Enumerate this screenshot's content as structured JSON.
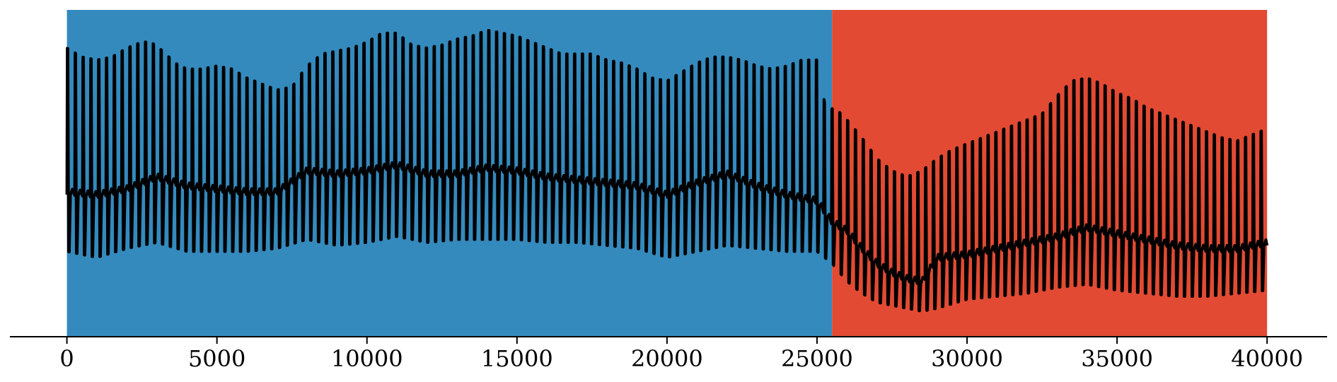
{
  "chart_data": {
    "type": "area",
    "title": "",
    "xlabel": "",
    "ylabel": "",
    "xlim": [
      -1900,
      42000
    ],
    "x_ticks": [
      0,
      5000,
      10000,
      15000,
      20000,
      25000,
      30000,
      35000,
      40000
    ],
    "x_tick_labels": [
      "0",
      "5000",
      "10000",
      "15000",
      "20000",
      "25000",
      "30000",
      "35000",
      "40000"
    ],
    "y_axis_visible": false,
    "grid": false,
    "legend": "none",
    "regions": [
      {
        "x_start": 0,
        "x_end": 25500,
        "color": "#348ABD"
      },
      {
        "x_start": 25500,
        "x_end": 40000,
        "color": "#E24A33"
      }
    ],
    "series": [
      {
        "color": "#000000",
        "x_start": 0,
        "x_end": 40000,
        "cycle_length": 260,
        "upper_envelope": {
          "x": [
            0,
            500,
            1000,
            1500,
            2000,
            2500,
            2800,
            3200,
            3600,
            4000,
            4500,
            5000,
            5500,
            6000,
            6500,
            7000,
            7500,
            8000,
            8500,
            9000,
            9500,
            10000,
            10500,
            11000,
            11500,
            12000,
            12500,
            13000,
            13500,
            14000,
            14500,
            15000,
            15500,
            16000,
            16500,
            17000,
            17500,
            18000,
            18500,
            19000,
            19500,
            20000,
            20500,
            21000,
            21500,
            22000,
            22500,
            23000,
            23500,
            24000,
            24500,
            25000,
            25300,
            25600,
            26000,
            26500,
            27000,
            27500,
            28000,
            28500,
            29000,
            29500,
            30000,
            30500,
            31000,
            31500,
            32000,
            32500,
            33000,
            33500,
            34000,
            34500,
            35000,
            35500,
            36000,
            36500,
            37000,
            37500,
            38000,
            38500,
            39000,
            39500,
            40000
          ],
          "y": [
            0.92,
            0.89,
            0.88,
            0.89,
            0.92,
            0.94,
            0.94,
            0.91,
            0.87,
            0.85,
            0.85,
            0.86,
            0.85,
            0.82,
            0.8,
            0.78,
            0.79,
            0.86,
            0.9,
            0.91,
            0.92,
            0.94,
            0.97,
            0.97,
            0.93,
            0.92,
            0.93,
            0.95,
            0.96,
            0.98,
            0.97,
            0.96,
            0.94,
            0.92,
            0.9,
            0.9,
            0.9,
            0.88,
            0.87,
            0.85,
            0.82,
            0.81,
            0.84,
            0.87,
            0.89,
            0.89,
            0.88,
            0.86,
            0.85,
            0.86,
            0.88,
            0.88,
            0.71,
            0.72,
            0.68,
            0.62,
            0.55,
            0.51,
            0.49,
            0.51,
            0.55,
            0.58,
            0.6,
            0.62,
            0.64,
            0.66,
            0.68,
            0.7,
            0.76,
            0.81,
            0.82,
            0.8,
            0.77,
            0.75,
            0.72,
            0.7,
            0.68,
            0.66,
            0.64,
            0.62,
            0.61,
            0.63,
            0.65
          ]
        },
        "baseline": {
          "x": [
            0,
            1000,
            2000,
            3000,
            4000,
            5000,
            6000,
            7000,
            8000,
            9000,
            10000,
            11000,
            12000,
            13000,
            14000,
            15000,
            16000,
            17000,
            18000,
            19000,
            20000,
            21000,
            22000,
            23000,
            24000,
            25000,
            25500,
            26000,
            26500,
            27000,
            27500,
            28000,
            28500,
            29000,
            30000,
            31000,
            32000,
            33000,
            34000,
            35000,
            36000,
            37000,
            38000,
            39000,
            40000
          ],
          "y": [
            0.43,
            0.42,
            0.44,
            0.48,
            0.45,
            0.44,
            0.43,
            0.43,
            0.5,
            0.49,
            0.5,
            0.52,
            0.49,
            0.49,
            0.51,
            0.5,
            0.48,
            0.47,
            0.46,
            0.45,
            0.42,
            0.46,
            0.49,
            0.45,
            0.42,
            0.4,
            0.33,
            0.3,
            0.24,
            0.19,
            0.16,
            0.14,
            0.13,
            0.21,
            0.22,
            0.24,
            0.26,
            0.28,
            0.31,
            0.29,
            0.27,
            0.25,
            0.24,
            0.24,
            0.26
          ]
        },
        "lower_envelope": {
          "x": [
            0,
            1000,
            2000,
            3000,
            4000,
            5000,
            6000,
            7000,
            8000,
            9000,
            10000,
            11000,
            12000,
            13000,
            14000,
            15000,
            16000,
            17000,
            18000,
            19000,
            20000,
            21000,
            22000,
            23000,
            24000,
            25000,
            25500,
            26000,
            26500,
            27000,
            27500,
            28000,
            28500,
            29000,
            30000,
            31000,
            32000,
            33000,
            34000,
            35000,
            36000,
            37000,
            38000,
            39000,
            40000
          ],
          "y": [
            0.24,
            0.22,
            0.25,
            0.27,
            0.24,
            0.24,
            0.24,
            0.25,
            0.28,
            0.26,
            0.27,
            0.29,
            0.27,
            0.28,
            0.28,
            0.28,
            0.27,
            0.27,
            0.26,
            0.25,
            0.22,
            0.24,
            0.26,
            0.25,
            0.24,
            0.24,
            0.2,
            0.14,
            0.1,
            0.07,
            0.06,
            0.05,
            0.04,
            0.05,
            0.08,
            0.09,
            0.1,
            0.12,
            0.13,
            0.11,
            0.1,
            0.09,
            0.09,
            0.1,
            0.11
          ]
        }
      }
    ]
  }
}
